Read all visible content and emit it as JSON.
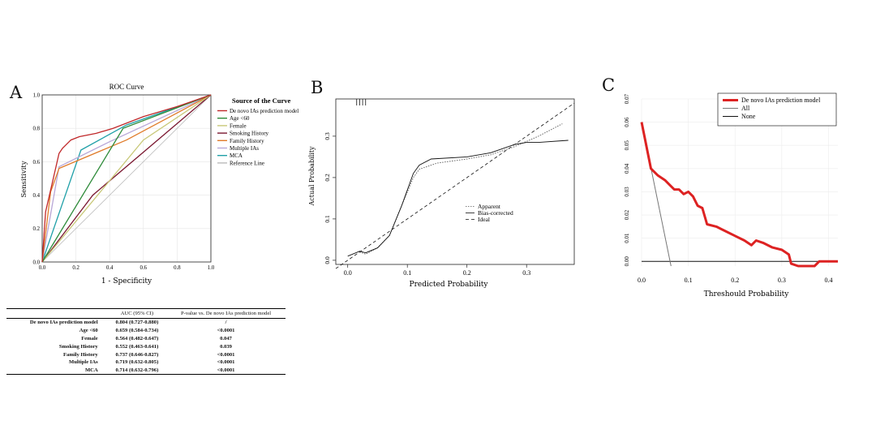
{
  "panels": {
    "a": "A",
    "b": "B",
    "c": "C"
  },
  "roc": {
    "title": "ROC Curve",
    "xlabel": "1 - Specificity",
    "ylabel": "Sensitivity",
    "ticks": [
      "0.0",
      "0.2",
      "0.4",
      "0.6",
      "0.8",
      "1.0"
    ],
    "legend_title": "Source of the Curve"
  },
  "calibration": {
    "xlabel": "Predicted Probability",
    "ylabel": "Actual Probability",
    "xticks": [
      "0.0",
      "0.1",
      "0.2",
      "0.3"
    ],
    "yticks": [
      "0.0",
      "0.1",
      "0.2",
      "0.3"
    ],
    "legend": [
      {
        "label": "Apparent",
        "dash": "1.5,1.5",
        "color": "#555555"
      },
      {
        "label": "Bias-corrected",
        "dash": "",
        "color": "#111111"
      },
      {
        "label": "Ideal",
        "dash": "4,3",
        "color": "#111111"
      }
    ]
  },
  "dca": {
    "xlabel": "Threshould Probability",
    "xticks": [
      "0.0",
      "0.1",
      "0.2",
      "0.3",
      "0.4"
    ],
    "yticks": [
      "0.00",
      "0.01",
      "0.02",
      "0.03",
      "0.04",
      "0.05",
      "0.06",
      "0.07"
    ],
    "legend": [
      {
        "label": "De novo IAs prediction model",
        "color": "#dd2222",
        "width": 3
      },
      {
        "label": "All",
        "color": "#777777",
        "width": 1
      },
      {
        "label": "None",
        "color": "#111111",
        "width": 1
      }
    ]
  },
  "table": {
    "headers": [
      "",
      "AUC (95% CI)",
      "P-value vs. De novo IAs prediction model"
    ],
    "rows": [
      [
        "De novo IAs prediction model",
        "0.804 (0.727-0.880)",
        "/"
      ],
      [
        "Age <60",
        "0.659 (0.584-0.734)",
        "<0.0001"
      ],
      [
        "Female",
        "0.564 (0.482-0.647)",
        "0.047"
      ],
      [
        "Smoking History",
        "0.552 (0.463-0.641)",
        "0.039"
      ],
      [
        "Family History",
        "0.737 (0.646-0.827)",
        "<0.0001"
      ],
      [
        "Multiple IAs",
        "0.719 (0.632-0.805)",
        "<0.0001"
      ],
      [
        "MCA",
        "0.714 (0.632-0.796)",
        "<0.0001"
      ]
    ]
  },
  "chart_data": [
    {
      "type": "line",
      "title": "ROC Curve",
      "xlabel": "1 - Specificity",
      "ylabel": "Sensitivity",
      "xlim": [
        0,
        1
      ],
      "ylim": [
        0,
        1
      ],
      "legend_position": "right",
      "series": [
        {
          "name": "De novo IAs prediction model",
          "color": "#c0282a",
          "x": [
            0,
            0.02,
            0.05,
            0.1,
            0.12,
            0.17,
            0.22,
            0.32,
            0.42,
            0.6,
            0.8,
            1.0
          ],
          "y": [
            0,
            0.3,
            0.43,
            0.65,
            0.68,
            0.73,
            0.75,
            0.77,
            0.8,
            0.87,
            0.93,
            1.0
          ]
        },
        {
          "name": "Age <60",
          "color": "#2e8b3a",
          "x": [
            0,
            0.48,
            1.0
          ],
          "y": [
            0,
            0.8,
            1.0
          ]
        },
        {
          "name": "Female",
          "color": "#c8c878",
          "x": [
            0,
            0.6,
            1.0
          ],
          "y": [
            0,
            0.73,
            1.0
          ]
        },
        {
          "name": "Smoking History",
          "color": "#7a1730",
          "x": [
            0,
            0.3,
            1.0
          ],
          "y": [
            0,
            0.4,
            1.0
          ]
        },
        {
          "name": "Family History",
          "color": "#e07b2a",
          "x": [
            0,
            0.05,
            0.1,
            0.5,
            1.0
          ],
          "y": [
            0,
            0.42,
            0.56,
            0.73,
            1.0
          ]
        },
        {
          "name": "Multiple IAs",
          "color": "#b8a8d8",
          "x": [
            0,
            0.1,
            0.4,
            1.0
          ],
          "y": [
            0,
            0.57,
            0.72,
            1.0
          ]
        },
        {
          "name": "MCA",
          "color": "#20a0a8",
          "x": [
            0,
            0.23,
            0.5,
            1.0
          ],
          "y": [
            0,
            0.67,
            0.82,
            1.0
          ]
        },
        {
          "name": "Reference Line",
          "color": "#bbbbbb",
          "x": [
            0,
            1
          ],
          "y": [
            0,
            1
          ]
        }
      ]
    },
    {
      "type": "line",
      "xlabel": "Predicted Probability",
      "ylabel": "Actual Probability",
      "xlim": [
        -0.02,
        0.38
      ],
      "ylim": [
        -0.01,
        0.39
      ],
      "series": [
        {
          "name": "Apparent",
          "x": [
            0.02,
            0.03,
            0.05,
            0.07,
            0.09,
            0.11,
            0.12,
            0.15,
            0.2,
            0.24,
            0.28,
            0.32,
            0.36
          ],
          "y": [
            0.02,
            0.015,
            0.03,
            0.06,
            0.13,
            0.2,
            0.22,
            0.235,
            0.245,
            0.255,
            0.275,
            0.3,
            0.33
          ]
        },
        {
          "name": "Bias-corrected",
          "x": [
            0,
            0.02,
            0.03,
            0.05,
            0.07,
            0.09,
            0.11,
            0.12,
            0.14,
            0.2,
            0.24,
            0.28,
            0.3,
            0.32,
            0.37
          ],
          "y": [
            0.01,
            0.022,
            0.018,
            0.03,
            0.06,
            0.13,
            0.21,
            0.23,
            0.245,
            0.25,
            0.26,
            0.28,
            0.285,
            0.285,
            0.29
          ]
        },
        {
          "name": "Ideal",
          "x": [
            -0.02,
            0.38
          ],
          "y": [
            -0.02,
            0.38
          ]
        }
      ],
      "rug_x": [
        0.015,
        0.02,
        0.025,
        0.03
      ]
    },
    {
      "type": "line",
      "xlabel": "Threshould Probability",
      "xlim": [
        0,
        0.42
      ],
      "ylim": [
        -0.002,
        0.07
      ],
      "legend_position": "top-right",
      "series": [
        {
          "name": "De novo IAs prediction model",
          "x": [
            0,
            0.02,
            0.035,
            0.05,
            0.06,
            0.07,
            0.08,
            0.09,
            0.1,
            0.105,
            0.11,
            0.12,
            0.13,
            0.14,
            0.16,
            0.18,
            0.2,
            0.22,
            0.235,
            0.245,
            0.26,
            0.28,
            0.3,
            0.315,
            0.32,
            0.335,
            0.35,
            0.37,
            0.38,
            0.42
          ],
          "y": [
            0.06,
            0.04,
            0.037,
            0.035,
            0.033,
            0.031,
            0.031,
            0.029,
            0.03,
            0.029,
            0.028,
            0.024,
            0.023,
            0.016,
            0.015,
            0.013,
            0.011,
            0.009,
            0.007,
            0.009,
            0.008,
            0.006,
            0.005,
            0.003,
            -0.001,
            -0.002,
            -0.002,
            -0.002,
            0,
            0
          ]
        },
        {
          "name": "All",
          "x": [
            0,
            0.063
          ],
          "y": [
            0.06,
            -0.002
          ]
        },
        {
          "name": "None",
          "x": [
            0,
            0.42
          ],
          "y": [
            0,
            0
          ]
        }
      ]
    }
  ]
}
